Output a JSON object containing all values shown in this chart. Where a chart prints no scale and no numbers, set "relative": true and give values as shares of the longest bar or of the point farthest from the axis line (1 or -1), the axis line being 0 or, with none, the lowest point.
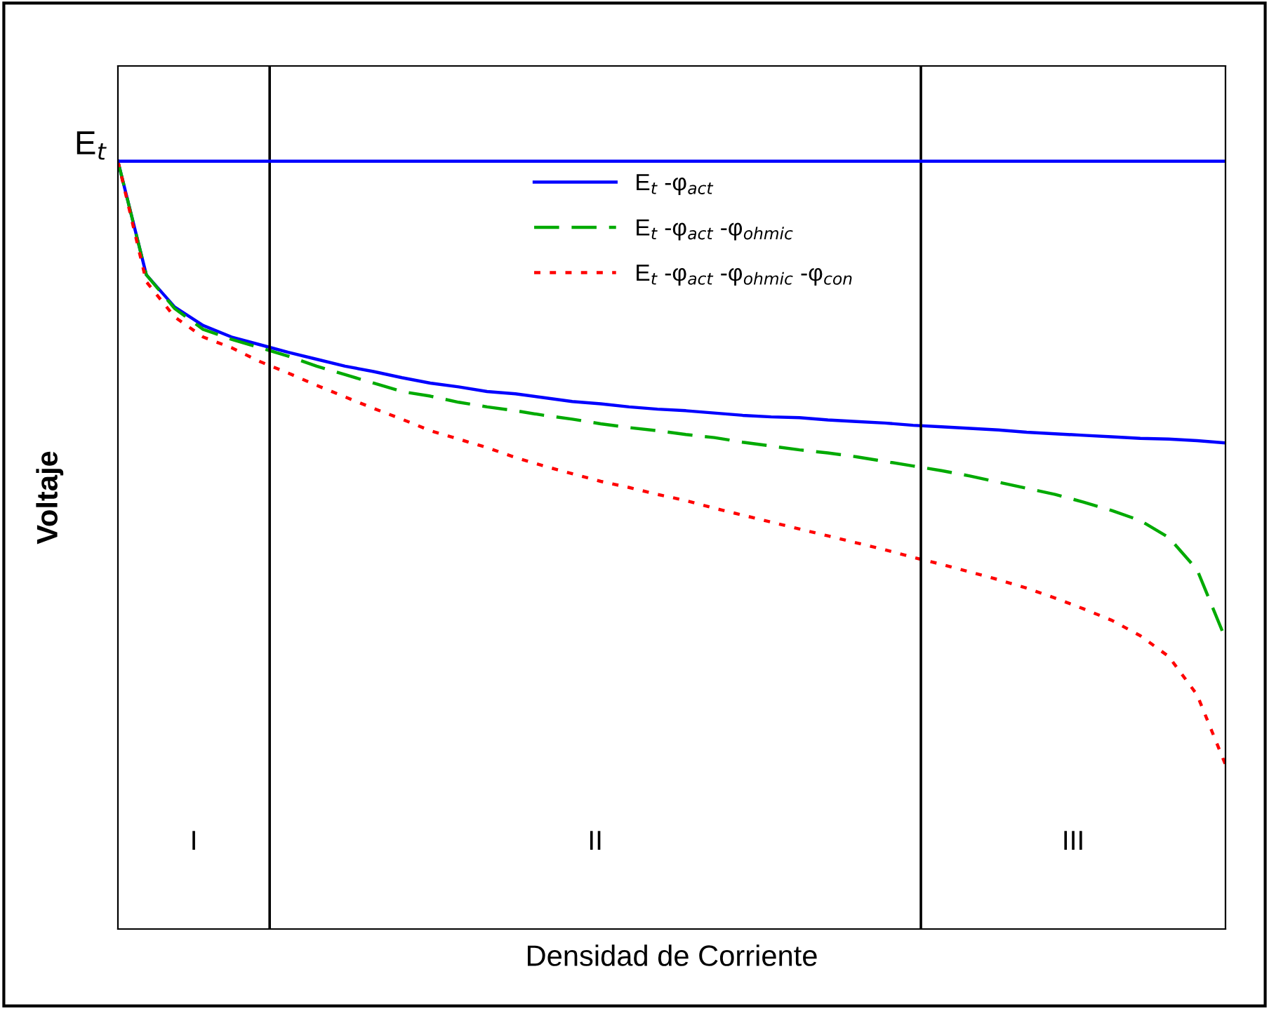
{
  "chart_data": {
    "type": "line",
    "relative": true,
    "xlabel": "Densidad de Corriente",
    "ylabel": "Voltaje",
    "legend": "top",
    "marker": "none",
    "categories": [
      null,
      null,
      null,
      null,
      null,
      null,
      null,
      null,
      null,
      null,
      null,
      null,
      null,
      null,
      null,
      null,
      null,
      null,
      null,
      null,
      null,
      null,
      null,
      null,
      null,
      null,
      null,
      null,
      null,
      null,
      null,
      null,
      null,
      null,
      null,
      null,
      null,
      null,
      null,
      null
    ],
    "series": [
      {
        "name": "E$_{t}$ -φ$_{act}$",
        "color": "#0000ff",
        "line_style": "solid",
        "values": [
          1.0,
          0.852,
          0.81,
          0.786,
          0.771,
          0.761,
          0.751,
          0.742,
          0.733,
          0.726,
          0.718,
          0.711,
          0.706,
          0.7,
          0.697,
          0.692,
          0.687,
          0.684,
          0.68,
          0.677,
          0.675,
          0.672,
          0.669,
          0.667,
          0.666,
          0.663,
          0.661,
          0.659,
          0.656,
          0.654,
          0.652,
          0.65,
          0.647,
          0.645,
          0.643,
          0.641,
          0.639,
          0.638,
          0.636,
          0.633
        ]
      },
      {
        "name": "E$_{t}$ -φ$_{act}$ -φ$_{ohmic}$",
        "color": "#00aa00",
        "line_style": "dashed",
        "values": [
          1.0,
          0.852,
          0.808,
          0.781,
          0.768,
          0.757,
          0.746,
          0.733,
          0.722,
          0.711,
          0.7,
          0.694,
          0.686,
          0.68,
          0.675,
          0.669,
          0.664,
          0.658,
          0.653,
          0.649,
          0.644,
          0.64,
          0.634,
          0.629,
          0.624,
          0.62,
          0.615,
          0.609,
          0.603,
          0.597,
          0.59,
          0.582,
          0.574,
          0.566,
          0.556,
          0.545,
          0.532,
          0.51,
          0.468,
          0.378
        ]
      },
      {
        "name": "E$_{t}$ -φ$_{act}$ -φ$_{ohmic}$ -φ$_{con}$",
        "color": "#ff0000",
        "line_style": "dotted",
        "values": [
          1.0,
          0.843,
          0.797,
          0.771,
          0.757,
          0.739,
          0.724,
          0.708,
          0.693,
          0.678,
          0.664,
          0.649,
          0.638,
          0.627,
          0.614,
          0.603,
          0.593,
          0.583,
          0.575,
          0.566,
          0.558,
          0.548,
          0.539,
          0.53,
          0.521,
          0.512,
          0.503,
          0.494,
          0.484,
          0.475,
          0.465,
          0.455,
          0.444,
          0.431,
          0.417,
          0.402,
          0.382,
          0.355,
          0.305,
          0.214
        ]
      }
    ],
    "ref_lines": [
      {
        "axis": "y",
        "value": 1,
        "label": "E$_{t}$",
        "color": "#0000ff"
      }
    ],
    "annotations": [
      "I",
      "II",
      "III"
    ]
  }
}
